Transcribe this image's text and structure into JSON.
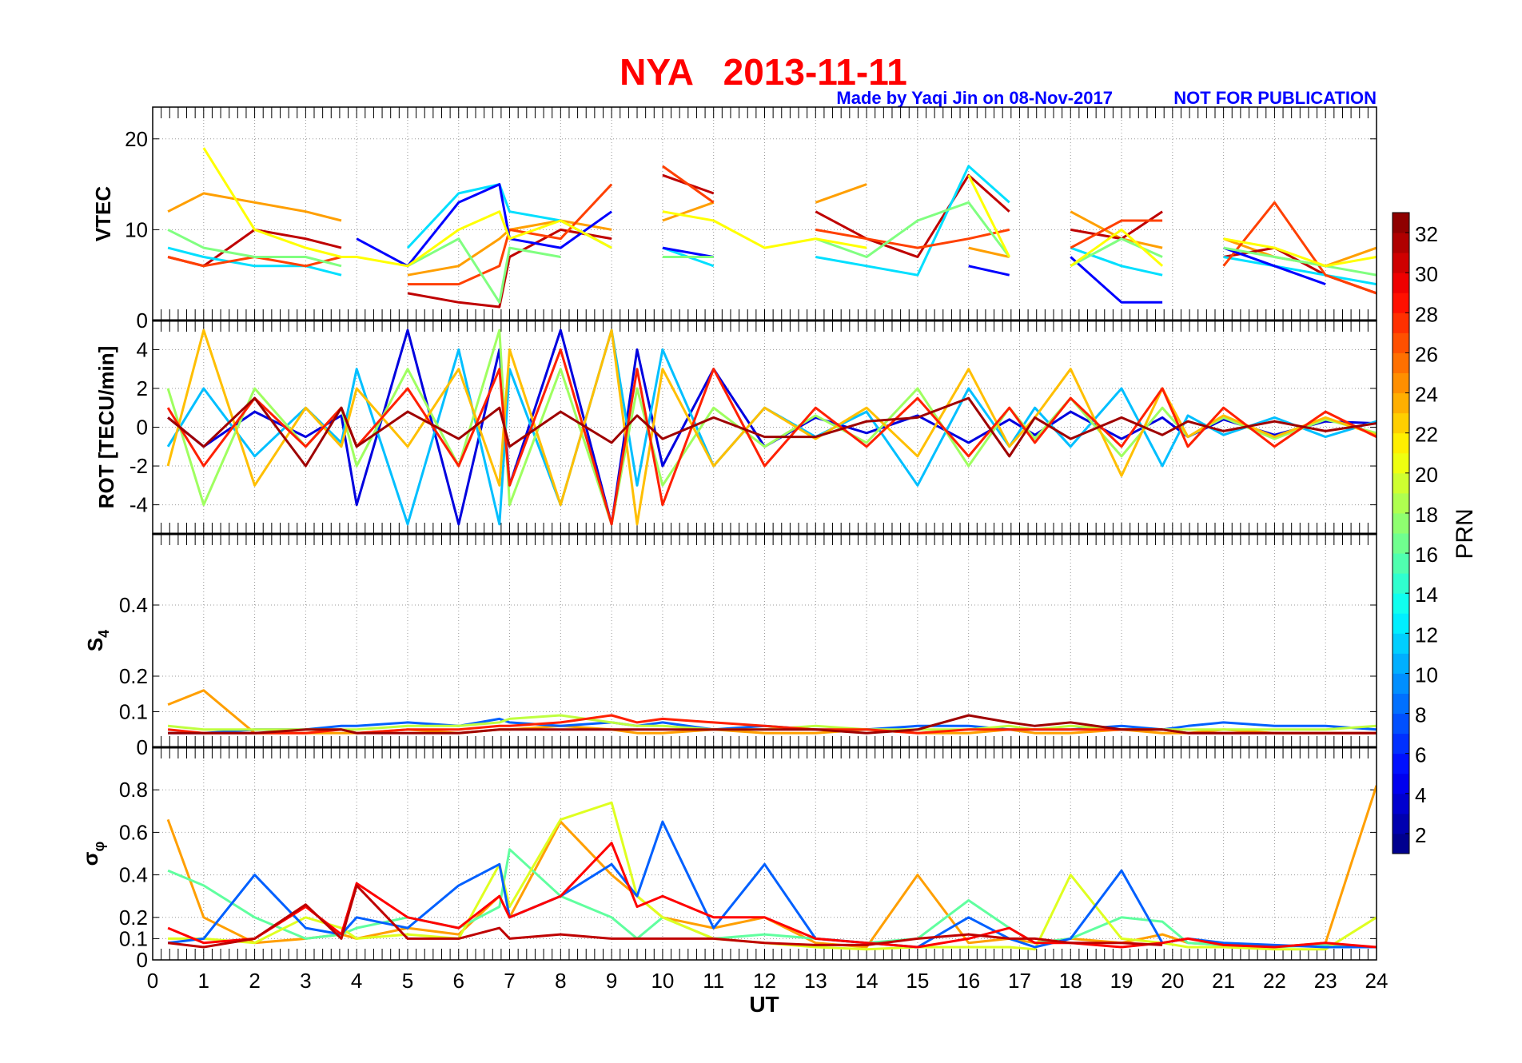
{
  "chart_data": {
    "type": "line",
    "title": "NYA   2013-11-11",
    "subtitle_left": "Made by Yaqi Jin on 08-Nov-2017",
    "subtitle_right": "NOT FOR PUBLICATION",
    "xlabel": "UT",
    "xlim": [
      0,
      24
    ],
    "xticks": [
      0,
      1,
      2,
      3,
      4,
      5,
      6,
      7,
      8,
      9,
      10,
      11,
      12,
      13,
      14,
      15,
      16,
      17,
      18,
      19,
      20,
      21,
      22,
      23,
      24
    ],
    "colorbar": {
      "label": "PRN",
      "range": [
        1,
        33
      ],
      "ticks": [
        2,
        4,
        6,
        8,
        10,
        12,
        14,
        16,
        18,
        20,
        22,
        24,
        26,
        28,
        30,
        32
      ],
      "colormap": "jet"
    },
    "grid": true,
    "x_hours": [
      0.3,
      1,
      2,
      3,
      3.7,
      4,
      5,
      6,
      6.8,
      7,
      8,
      9,
      9.5,
      10,
      11,
      12,
      13,
      14,
      15,
      16,
      16.8,
      17.3,
      18,
      19,
      19.8,
      20.3,
      21,
      22,
      23,
      24
    ],
    "panels": [
      {
        "ylabel": "VTEC",
        "ylim": [
          0,
          23.5
        ],
        "yticks": [
          "0",
          "10",
          "20"
        ],
        "ytick_values": [
          0,
          10,
          20
        ],
        "series": [
          {
            "prn": 24,
            "y": [
              12,
              14,
              13,
              12,
              11,
              null,
              5,
              6,
              9,
              10,
              11,
              10,
              null,
              11,
              13,
              null,
              13,
              15,
              null,
              8,
              7,
              null,
              12,
              9,
              8,
              null,
              9,
              7,
              6,
              8
            ]
          },
          {
            "prn": 31,
            "y": [
              7,
              6,
              10,
              9,
              8,
              null,
              3,
              2,
              1.5,
              7,
              10,
              9,
              null,
              16,
              14,
              null,
              12,
              9,
              7,
              16,
              12,
              null,
              10,
              9,
              12,
              null,
              7,
              8,
              5,
              3
            ]
          },
          {
            "prn": 12,
            "y": [
              8,
              7,
              6,
              6,
              5,
              null,
              8,
              14,
              15,
              12,
              11,
              8,
              null,
              8,
              6,
              null,
              7,
              6,
              5,
              17,
              13,
              null,
              8,
              6,
              5,
              null,
              7,
              6,
              5,
              4
            ]
          },
          {
            "prn": 27,
            "y": [
              7,
              6,
              7,
              6,
              7,
              null,
              4,
              4,
              6,
              10,
              9,
              15,
              null,
              17,
              13,
              null,
              10,
              9,
              8,
              9,
              10,
              null,
              8,
              11,
              11,
              null,
              6,
              13,
              5,
              3
            ]
          },
          {
            "prn": 5,
            "y": [
              null,
              null,
              null,
              null,
              null,
              9,
              6,
              13,
              15,
              9,
              8,
              12,
              null,
              8,
              7,
              null,
              null,
              null,
              null,
              6,
              5,
              null,
              7,
              2,
              2,
              null,
              8,
              6,
              4,
              null
            ]
          },
          {
            "prn": 17,
            "y": [
              10,
              8,
              7,
              7,
              6,
              null,
              6,
              9,
              2,
              8,
              7,
              null,
              null,
              7,
              7,
              null,
              9,
              7,
              11,
              13,
              7,
              null,
              6,
              9,
              7,
              null,
              8,
              7,
              6,
              5
            ]
          },
          {
            "prn": 21,
            "y": [
              null,
              19,
              10,
              8,
              7,
              7,
              6,
              10,
              12,
              9,
              11,
              8,
              null,
              12,
              11,
              8,
              9,
              8,
              null,
              16,
              7,
              null,
              6,
              10,
              6,
              null,
              9,
              8,
              6,
              7
            ]
          }
        ]
      },
      {
        "ylabel": "ROT [TECU/min]",
        "ylim": [
          -5.5,
          5.5
        ],
        "yticks": [
          "-4",
          "-2",
          "0",
          "2",
          "4"
        ],
        "ytick_values": [
          -4,
          -2,
          0,
          2,
          4
        ],
        "series": [
          {
            "prn": 4,
            "y": [
              0.5,
              -1,
              0.8,
              -0.5,
              0.6,
              -4,
              5,
              -5,
              4,
              -3,
              5,
              -5,
              4,
              -2,
              3,
              -1,
              0.5,
              -0.3,
              0.6,
              -0.8,
              0.4,
              -0.4,
              0.8,
              -0.6,
              0.5,
              -0.5,
              0.4,
              -0.4,
              0.3,
              0.2
            ]
          },
          {
            "prn": 11,
            "y": [
              -1,
              2,
              -1.5,
              1,
              -0.8,
              3,
              -5,
              4,
              -5,
              3,
              -4,
              5,
              -3,
              4,
              -2,
              1,
              -0.5,
              0.8,
              -3,
              2,
              -1,
              1,
              -1,
              2,
              -2,
              0.6,
              -0.4,
              0.5,
              -0.5,
              0.3
            ]
          },
          {
            "prn": 18,
            "y": [
              2,
              -4,
              2,
              -1,
              1,
              -2,
              3,
              -2,
              5,
              -4,
              3,
              -5,
              2,
              -3,
              1,
              -1,
              0.6,
              -0.8,
              2,
              -2,
              1,
              -0.6,
              1.5,
              -1.5,
              1,
              -0.5,
              0.5,
              -0.6,
              0.4,
              -0.3
            ]
          },
          {
            "prn": 23,
            "y": [
              -2,
              5,
              -3,
              1,
              -1,
              2,
              -1,
              3,
              -3,
              4,
              -4,
              5,
              -5,
              3,
              -2,
              1,
              -0.6,
              1,
              -1.5,
              3,
              -1,
              0.5,
              3,
              -2.5,
              2,
              -0.5,
              0.6,
              -0.5,
              0.5,
              -0.4
            ]
          },
          {
            "prn": 28,
            "y": [
              1,
              -2,
              1.5,
              -1,
              1,
              -1,
              2,
              -2,
              3,
              -3,
              4,
              -5,
              3,
              -4,
              3,
              -2,
              1,
              -1,
              1.5,
              -1.5,
              1,
              -0.8,
              1.5,
              -1,
              2,
              -1,
              1,
              -1,
              0.8,
              -0.5
            ]
          },
          {
            "prn": 32,
            "y": [
              0.5,
              -1,
              1.5,
              -2,
              1,
              -1,
              0.8,
              -0.6,
              1,
              -1,
              0.8,
              -0.8,
              0.6,
              -0.6,
              0.5,
              -0.5,
              -0.5,
              0.3,
              0.5,
              1.5,
              -1.5,
              0.5,
              -0.6,
              0.5,
              -0.4,
              0.3,
              -0.2,
              0.3,
              -0.2,
              0.2
            ]
          }
        ]
      },
      {
        "ylabel": "S4",
        "ylim": [
          0,
          0.6
        ],
        "yticks": [
          "0",
          "0.1",
          "0.2",
          "0.4"
        ],
        "ytick_values": [
          0,
          0.1,
          0.2,
          0.4
        ],
        "series": [
          {
            "prn": 24,
            "y": [
              0.12,
              0.16,
              0.04,
              0.04,
              0.04,
              0.04,
              0.05,
              0.04,
              0.05,
              0.05,
              0.06,
              0.05,
              0.04,
              0.04,
              0.05,
              0.04,
              0.04,
              0.05,
              0.04,
              0.04,
              0.05,
              0.04,
              0.04,
              0.05,
              0.04,
              0.04,
              0.05,
              0.04,
              0.04,
              0.04
            ]
          },
          {
            "prn": 8,
            "y": [
              0.04,
              0.04,
              0.05,
              0.05,
              0.06,
              0.06,
              0.07,
              0.06,
              0.08,
              0.07,
              0.06,
              0.07,
              0.06,
              0.07,
              0.05,
              0.06,
              0.05,
              0.05,
              0.06,
              0.06,
              0.05,
              0.05,
              0.05,
              0.06,
              0.05,
              0.06,
              0.07,
              0.06,
              0.06,
              0.05
            ]
          },
          {
            "prn": 19,
            "y": [
              0.06,
              0.05,
              0.05,
              0.05,
              0.05,
              0.05,
              0.06,
              0.06,
              0.07,
              0.08,
              0.09,
              0.07,
              0.06,
              0.06,
              0.05,
              0.05,
              0.06,
              0.05,
              0.05,
              0.05,
              0.06,
              0.05,
              0.06,
              0.05,
              0.05,
              0.05,
              0.05,
              0.05,
              0.05,
              0.06
            ]
          },
          {
            "prn": 28,
            "y": [
              0.05,
              0.04,
              0.04,
              0.04,
              0.05,
              0.04,
              0.05,
              0.05,
              0.06,
              0.06,
              0.07,
              0.09,
              0.07,
              0.08,
              0.07,
              0.06,
              0.05,
              0.05,
              0.04,
              0.05,
              0.05,
              0.05,
              0.05,
              0.05,
              0.05,
              0.04,
              0.04,
              0.04,
              0.04,
              0.04
            ]
          },
          {
            "prn": 32,
            "y": [
              0.04,
              0.04,
              0.04,
              0.05,
              0.05,
              0.04,
              0.04,
              0.04,
              0.05,
              0.05,
              0.05,
              0.05,
              0.05,
              0.05,
              0.05,
              0.05,
              0.05,
              0.04,
              0.05,
              0.09,
              0.07,
              0.06,
              0.07,
              0.05,
              0.05,
              0.04,
              0.04,
              0.04,
              0.04,
              0.04
            ]
          }
        ]
      },
      {
        "ylabel": "σφ",
        "ylim": [
          0,
          1.0
        ],
        "yticks": [
          "0",
          "0.1",
          "0.2",
          "0.4",
          "0.6",
          "0.8"
        ],
        "ytick_values": [
          0,
          0.1,
          0.2,
          0.4,
          0.6,
          0.8
        ],
        "series": [
          {
            "prn": 24,
            "y": [
              0.66,
              0.2,
              0.08,
              0.1,
              0.12,
              0.1,
              0.15,
              0.12,
              0.3,
              0.2,
              0.65,
              0.4,
              0.3,
              0.2,
              0.15,
              0.2,
              0.08,
              0.06,
              0.4,
              0.08,
              0.1,
              0.08,
              0.1,
              0.08,
              0.12,
              0.08,
              0.07,
              0.06,
              0.08,
              0.82
            ]
          },
          {
            "prn": 16,
            "y": [
              0.42,
              0.35,
              0.2,
              0.1,
              0.12,
              0.15,
              0.2,
              0.15,
              0.25,
              0.52,
              0.3,
              0.2,
              0.1,
              0.2,
              0.1,
              0.12,
              0.1,
              0.08,
              0.1,
              0.28,
              0.15,
              0.08,
              0.1,
              0.2,
              0.18,
              0.08,
              0.07,
              0.06,
              0.07,
              0.06
            ]
          },
          {
            "prn": 20,
            "y": [
              0.1,
              0.1,
              0.08,
              0.2,
              0.15,
              0.1,
              0.12,
              0.1,
              0.45,
              0.25,
              0.66,
              0.74,
              0.3,
              0.2,
              0.1,
              0.08,
              0.06,
              0.05,
              0.06,
              0.06,
              0.06,
              0.05,
              0.4,
              0.1,
              0.08,
              0.06,
              0.06,
              0.05,
              0.05,
              0.2
            ]
          },
          {
            "prn": 8,
            "y": [
              0.08,
              0.1,
              0.4,
              0.15,
              0.12,
              0.2,
              0.15,
              0.35,
              0.45,
              0.2,
              0.3,
              0.45,
              0.3,
              0.65,
              0.15,
              0.45,
              0.1,
              0.08,
              0.06,
              0.2,
              0.1,
              0.06,
              0.1,
              0.42,
              0.08,
              0.1,
              0.08,
              0.07,
              0.06,
              0.06
            ]
          },
          {
            "prn": 29,
            "y": [
              0.15,
              0.08,
              0.1,
              0.25,
              0.12,
              0.36,
              0.2,
              0.15,
              0.3,
              0.2,
              0.3,
              0.55,
              0.25,
              0.3,
              0.2,
              0.2,
              0.1,
              0.08,
              0.06,
              0.1,
              0.15,
              0.08,
              0.08,
              0.06,
              0.08,
              0.1,
              0.07,
              0.06,
              0.08,
              0.06
            ]
          },
          {
            "prn": 31,
            "y": [
              0.08,
              0.06,
              0.1,
              0.26,
              0.1,
              0.35,
              0.1,
              0.1,
              0.15,
              0.1,
              0.12,
              0.1,
              0.1,
              0.1,
              0.1,
              0.08,
              0.07,
              0.07,
              0.1,
              0.12,
              0.1,
              0.1,
              0.08,
              0.08,
              0.07,
              null,
              null,
              null,
              null,
              null
            ]
          }
        ]
      }
    ]
  }
}
